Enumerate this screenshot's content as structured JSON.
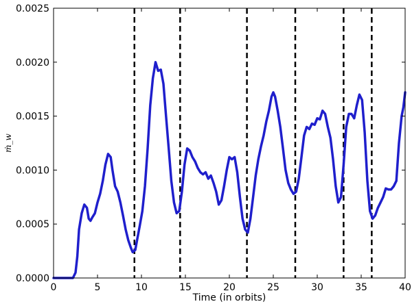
{
  "chart_data": {
    "type": "line",
    "title": "",
    "xlabel": "Time (in orbits)",
    "ylabel": "ṁ_w",
    "xlim": [
      0,
      40
    ],
    "ylim": [
      0,
      0.0025
    ],
    "xticks": [
      0,
      5,
      10,
      15,
      20,
      25,
      30,
      35,
      40
    ],
    "xtick_labels": [
      "0",
      "5",
      "10",
      "15",
      "20",
      "25",
      "30",
      "35",
      "40"
    ],
    "yticks": [
      0,
      0.0005,
      0.001,
      0.0015,
      0.002,
      0.0025
    ],
    "ytick_labels": [
      "0.0000",
      "0.0005",
      "0.0010",
      "0.0015",
      "0.0020",
      "0.0025"
    ],
    "grid": false,
    "line_color": "#1f1fcc",
    "vline_color": "#000000",
    "vlines": [
      9.2,
      14.4,
      22.0,
      27.5,
      33.0,
      36.2
    ],
    "series": [
      {
        "x": [
          0,
          2.2,
          2.5,
          2.7,
          2.9,
          3.2,
          3.5,
          3.8,
          4.0,
          4.2,
          4.4,
          4.7,
          5.0,
          5.3,
          5.6,
          5.9,
          6.2,
          6.5,
          6.7,
          7.0,
          7.3,
          7.6,
          7.9,
          8.2,
          8.5,
          8.8,
          9.0,
          9.3,
          9.5,
          9.8,
          10.1,
          10.4,
          10.7,
          11.0,
          11.3,
          11.6,
          11.9,
          12.2,
          12.5,
          12.8,
          13.1,
          13.4,
          13.7,
          14.0,
          14.3,
          14.6,
          14.9,
          15.2,
          15.5,
          15.8,
          16.1,
          16.4,
          16.7,
          17.0,
          17.3,
          17.6,
          17.9,
          18.2,
          18.5,
          18.8,
          19.1,
          19.4,
          19.7,
          20.0,
          20.3,
          20.6,
          20.9,
          21.2,
          21.5,
          21.8,
          22.1,
          22.4,
          22.7,
          23.0,
          23.3,
          23.6,
          23.9,
          24.2,
          24.5,
          24.8,
          25.0,
          25.2,
          25.5,
          25.8,
          26.1,
          26.4,
          26.7,
          27.0,
          27.3,
          27.6,
          27.9,
          28.2,
          28.5,
          28.8,
          29.1,
          29.4,
          29.7,
          30.0,
          30.3,
          30.6,
          30.9,
          31.2,
          31.5,
          31.8,
          32.1,
          32.4,
          32.7,
          33.0,
          33.3,
          33.6,
          33.9,
          34.2,
          34.5,
          34.8,
          35.1,
          35.4,
          35.7,
          36.0,
          36.3,
          36.6,
          36.9,
          37.2,
          37.5,
          37.8,
          38.1,
          38.4,
          38.7,
          39.0,
          39.3,
          39.6,
          39.8,
          40.0
        ],
        "y": [
          0,
          0,
          5e-05,
          0.0002,
          0.00045,
          0.0006,
          0.00068,
          0.00065,
          0.00055,
          0.00053,
          0.00056,
          0.0006,
          0.0007,
          0.00078,
          0.0009,
          0.00105,
          0.00115,
          0.00112,
          0.001,
          0.00085,
          0.0008,
          0.0007,
          0.00058,
          0.00045,
          0.00035,
          0.00028,
          0.00024,
          0.00026,
          0.00035,
          0.00048,
          0.00062,
          0.00085,
          0.0012,
          0.0016,
          0.00185,
          0.002,
          0.00192,
          0.00193,
          0.0018,
          0.0015,
          0.0012,
          0.0009,
          0.0007,
          0.0006,
          0.00062,
          0.0008,
          0.00105,
          0.0012,
          0.00118,
          0.00112,
          0.00108,
          0.00102,
          0.00098,
          0.00096,
          0.00098,
          0.00092,
          0.00095,
          0.00088,
          0.0008,
          0.00068,
          0.00072,
          0.00085,
          0.001,
          0.00112,
          0.0011,
          0.00112,
          0.00098,
          0.00075,
          0.00055,
          0.00045,
          0.00042,
          0.00055,
          0.00075,
          0.00095,
          0.0011,
          0.00122,
          0.00132,
          0.00145,
          0.00155,
          0.00168,
          0.00172,
          0.00168,
          0.00155,
          0.0014,
          0.0012,
          0.001,
          0.00088,
          0.00082,
          0.00078,
          0.0008,
          0.00092,
          0.00112,
          0.00132,
          0.0014,
          0.00138,
          0.00143,
          0.00142,
          0.00148,
          0.00147,
          0.00155,
          0.00152,
          0.0014,
          0.0013,
          0.0011,
          0.00085,
          0.0007,
          0.00075,
          0.00105,
          0.0014,
          0.00152,
          0.00152,
          0.00148,
          0.0016,
          0.0017,
          0.00165,
          0.00135,
          0.0009,
          0.00062,
          0.00055,
          0.00058,
          0.00065,
          0.0007,
          0.00075,
          0.00083,
          0.00082,
          0.00082,
          0.00085,
          0.0009,
          0.00125,
          0.0015,
          0.00158,
          0.00172
        ]
      }
    ]
  }
}
